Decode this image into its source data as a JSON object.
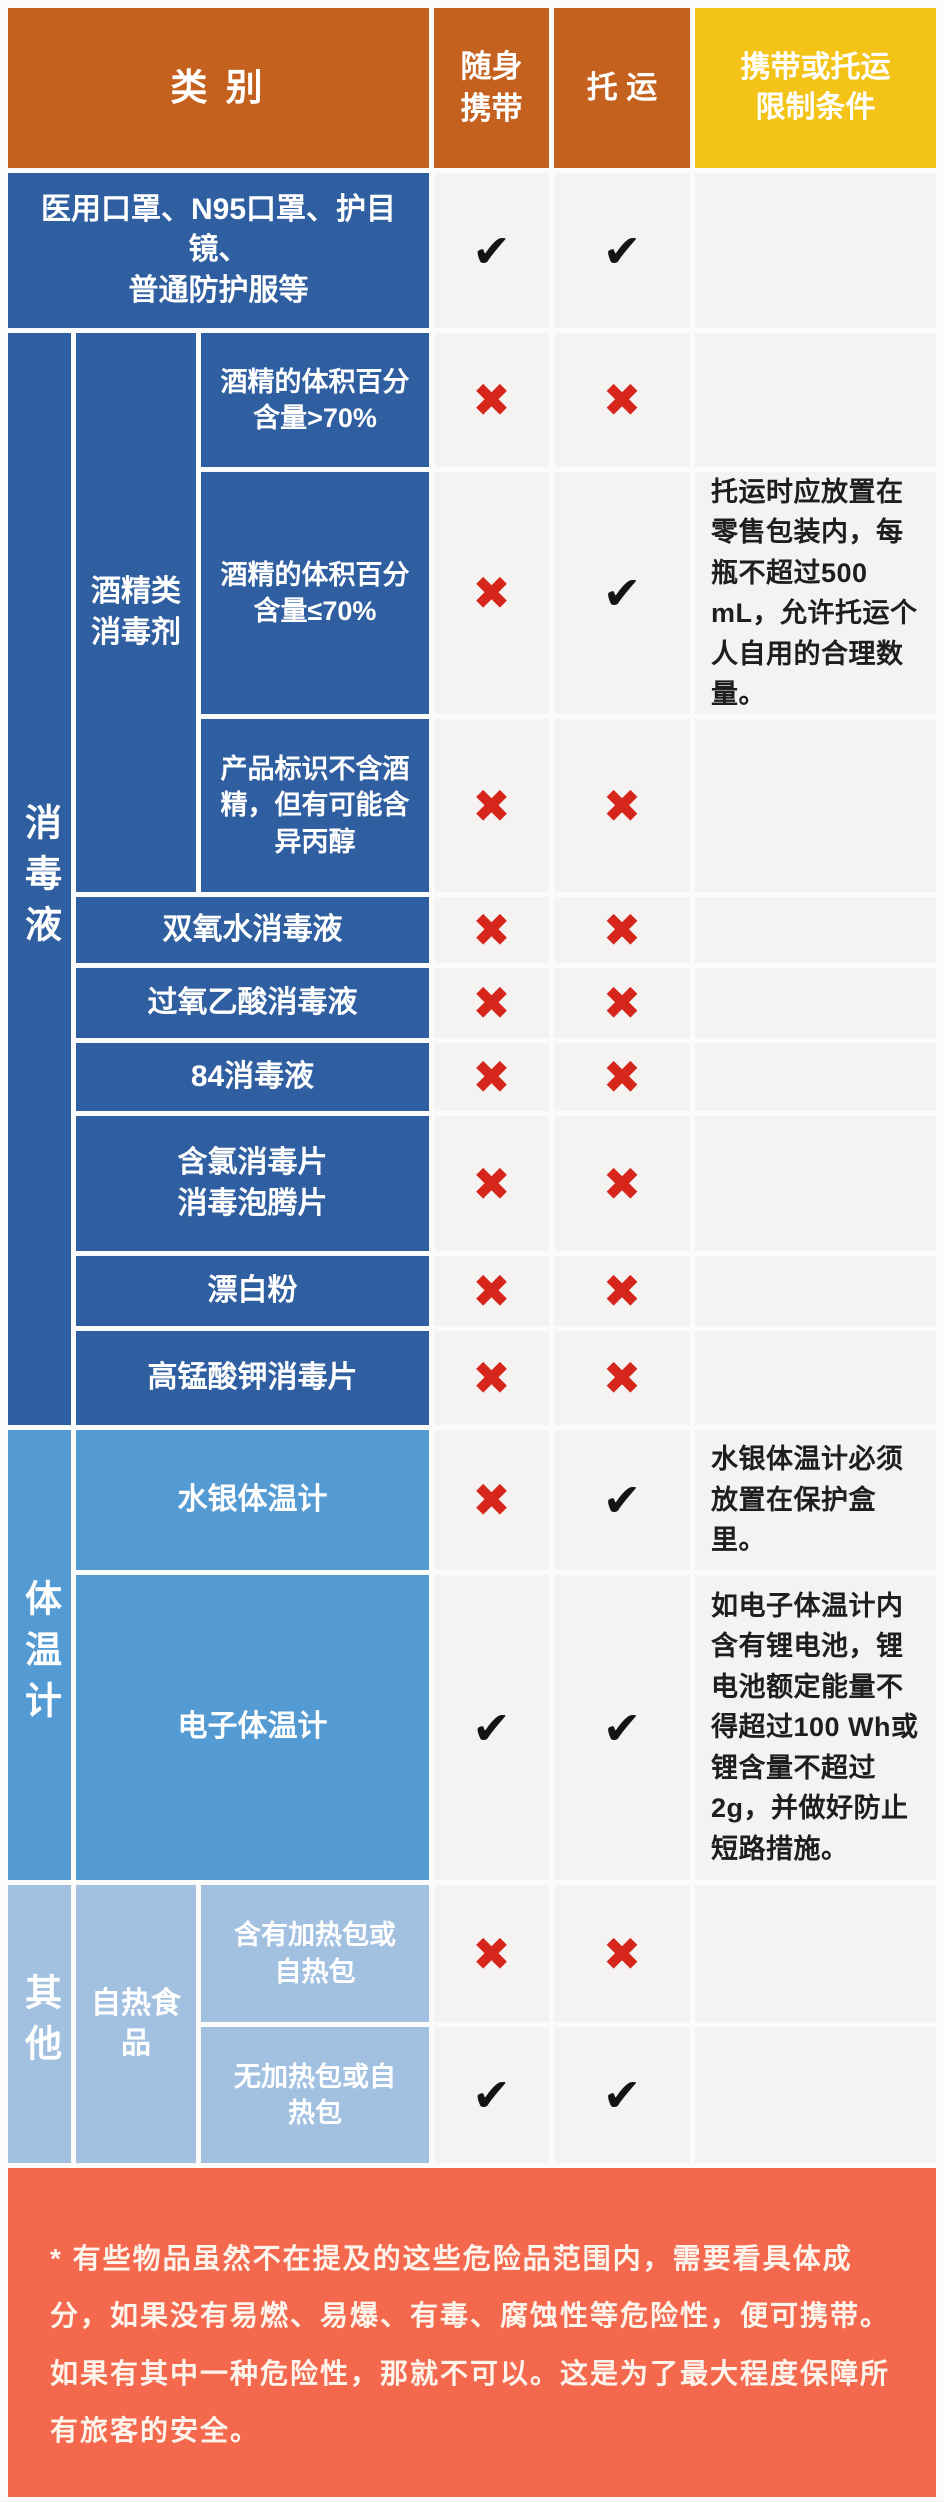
{
  "header": {
    "category": "类 别",
    "carry": "随身\n携带",
    "checked": "托 运",
    "restriction": "携带或托运\n限制条件"
  },
  "groups": {
    "disinfectant": "消毒液",
    "alcohol": "酒精类\n消毒剂",
    "thermometer": "体温计",
    "other": "其他",
    "self_heating": "自热食品"
  },
  "rows": [
    {
      "label": "医用口罩、N95口罩、护目镜、\n普通防护服等",
      "carry": "✔",
      "checked": "✔",
      "note": ""
    },
    {
      "label": "酒精的体积百分\n含量>70%",
      "carry": "✖",
      "checked": "✖",
      "note": ""
    },
    {
      "label": "酒精的体积百分\n含量≤70%",
      "carry": "✖",
      "checked": "✔",
      "note": "托运时应放置在零售包装内，每瓶不超过500 mL，允许托运个人自用的合理数量。"
    },
    {
      "label": "产品标识不含酒\n精，但有可能含\n异丙醇",
      "carry": "✖",
      "checked": "✖",
      "note": ""
    },
    {
      "label": "双氧水消毒液",
      "carry": "✖",
      "checked": "✖",
      "note": ""
    },
    {
      "label": "过氧乙酸消毒液",
      "carry": "✖",
      "checked": "✖",
      "note": ""
    },
    {
      "label": "84消毒液",
      "carry": "✖",
      "checked": "✖",
      "note": ""
    },
    {
      "label": "含氯消毒片\n消毒泡腾片",
      "carry": "✖",
      "checked": "✖",
      "note": ""
    },
    {
      "label": "漂白粉",
      "carry": "✖",
      "checked": "✖",
      "note": ""
    },
    {
      "label": "高锰酸钾消毒片",
      "carry": "✖",
      "checked": "✖",
      "note": ""
    },
    {
      "label": "水银体温计",
      "carry": "✖",
      "checked": "✔",
      "note": "水银体温计必须放置在保护盒里。"
    },
    {
      "label": "电子体温计",
      "carry": "✔",
      "checked": "✔",
      "note": "如电子体温计内含有锂电池，锂电池额定能量不得超过100 Wh或锂含量不超过2g，并做好防止短路措施。"
    },
    {
      "label": "含有加热包或\n自热包",
      "carry": "✖",
      "checked": "✖",
      "note": ""
    },
    {
      "label": "无加热包或自\n热包",
      "carry": "✔",
      "checked": "✔",
      "note": ""
    }
  ],
  "footer": {
    "text": "* 有些物品虽然不在提及的这些危险品范围内，需要看具体成分，如果没有易燃、易爆、有毒、腐蚀性等危险性，便可携带。如果有其中一种危险性，那就不可以。这是为了最大程度保障所有旅客的安全。"
  },
  "colors": {
    "header_orange": "#c4611e",
    "header_yellow": "#f3c318",
    "dark_blue": "#2f5fa0",
    "medium_blue": "#549bd3",
    "light_blue": "#a2c1e1",
    "cell_gray": "#f4f3f1",
    "x_red": "#d6251b",
    "check_black": "#141414",
    "footer_coral": "#f4684e"
  }
}
